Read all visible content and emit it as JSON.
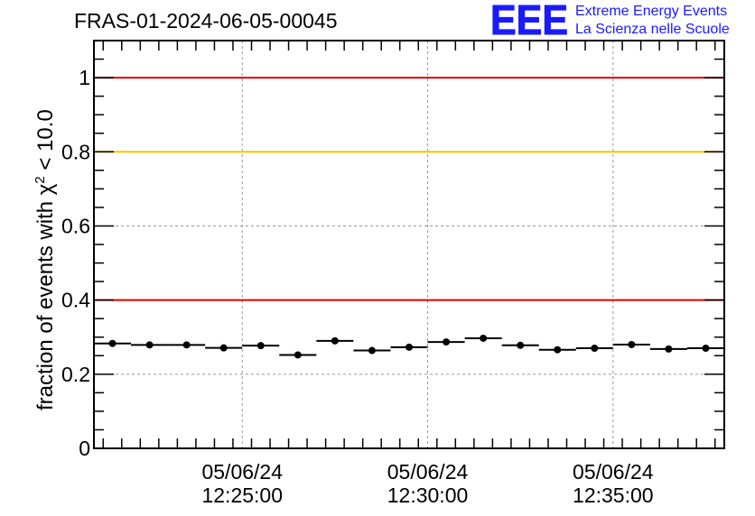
{
  "header": {
    "title": "FRAS-01-2024-06-05-00045",
    "logo_letters": "EEE",
    "logo_line1": "Extreme Energy Events",
    "logo_line2": "La Scienza nelle Scuole"
  },
  "chart_data": {
    "type": "scatter",
    "title": "FRAS-01-2024-06-05-00045",
    "xlabel": "",
    "ylabel_prefix": "fraction of events with χ",
    "ylabel_sup": "2",
    "ylabel_suffix": " < 10.0",
    "ylim": [
      0,
      1.1
    ],
    "y_ticks": [
      0,
      0.2,
      0.4,
      0.6,
      0.8,
      1
    ],
    "y_tick_labels": [
      "0",
      "0.2",
      "0.4",
      "0.6",
      "0.8",
      "1"
    ],
    "x_ticks": [
      {
        "date": "05/06/24",
        "time": "12:25:00"
      },
      {
        "date": "05/06/24",
        "time": "12:30:00"
      },
      {
        "date": "05/06/24",
        "time": "12:35:00"
      }
    ],
    "grid": true,
    "reference_lines": [
      {
        "y": 1.0,
        "color": "#e00000"
      },
      {
        "y": 0.8,
        "color": "#ffc000"
      },
      {
        "y": 0.4,
        "color": "#e00000"
      }
    ],
    "bin_width_minutes": 1,
    "series": [
      {
        "x": [
          "12:21:30",
          "12:22:30",
          "12:23:30",
          "12:24:30",
          "12:25:30",
          "12:26:30",
          "12:27:30",
          "12:28:30",
          "12:29:30",
          "12:30:30",
          "12:31:30",
          "12:32:30",
          "12:33:30",
          "12:34:30",
          "12:35:30",
          "12:36:30",
          "12:37:30"
        ],
        "values": [
          0.283,
          0.279,
          0.279,
          0.271,
          0.277,
          0.252,
          0.29,
          0.264,
          0.273,
          0.287,
          0.297,
          0.278,
          0.266,
          0.27,
          0.28,
          0.268,
          0.27
        ]
      }
    ]
  }
}
